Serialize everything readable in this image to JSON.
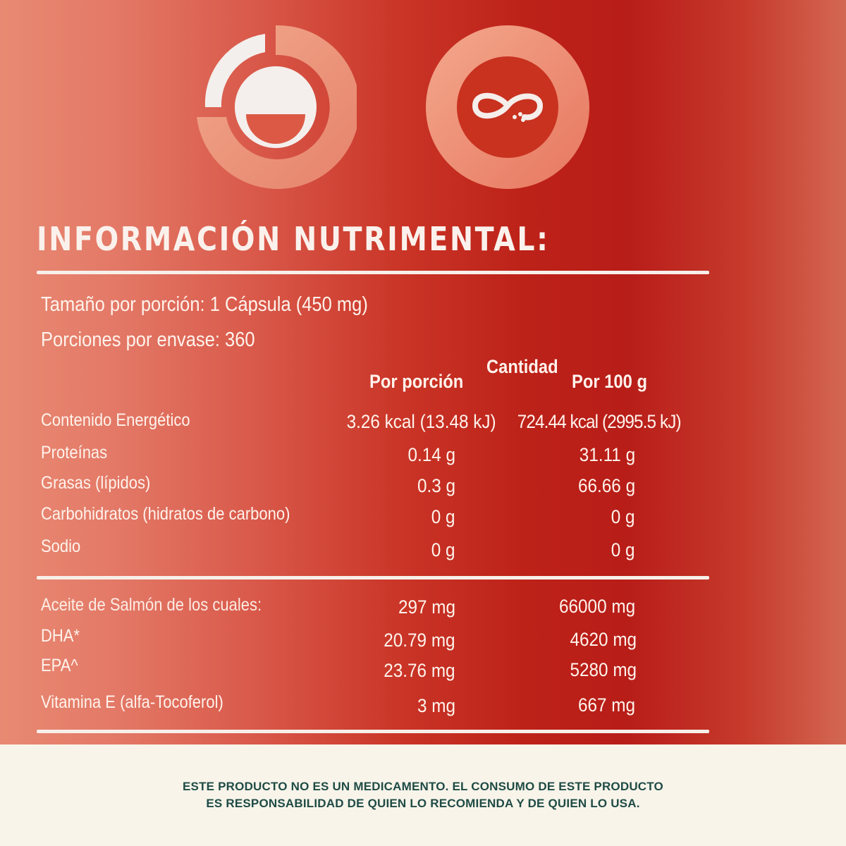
{
  "title": "INFORMACIÓN NUTRIMENTAL:",
  "serving_size": "Tamaño por porción: 1 Cápsula (450 mg)",
  "servings_per_container": "Porciones por envase:  360",
  "columns": {
    "quantity": "Cantidad",
    "per_serving": "Por porción",
    "per_100g": "Por 100 g"
  },
  "nutrients": [
    {
      "name": "Contenido Energético",
      "per_serving": "3.26 kcal (13.48 kJ)",
      "per_100g": "724.44 kcal (2995.5 kJ)"
    },
    {
      "name": "Proteínas",
      "per_serving": "0.14 g",
      "per_100g": "31.11 g"
    },
    {
      "name": "Grasas (lípidos)",
      "per_serving": "0.3 g",
      "per_100g": "66.66 g"
    },
    {
      "name": "Carbohidratos (hidratos de carbono)",
      "per_serving": "0 g",
      "per_100g": "0 g"
    },
    {
      "name": "Sodio",
      "per_serving": "0 g",
      "per_100g": "0 g"
    }
  ],
  "components": [
    {
      "name": "Aceite de Salmón de los cuales:",
      "per_serving": "297 mg",
      "per_100g": "66000 mg"
    },
    {
      "name": "DHA*",
      "per_serving": "20.79 mg",
      "per_100g": "4620 mg"
    },
    {
      "name": "EPA^",
      "per_serving": "23.76 mg",
      "per_100g": "5280 mg"
    },
    {
      "name": "Vitamina E (alfa-Tocoferol)",
      "per_serving": "3 mg",
      "per_100g": "667 mg"
    }
  ],
  "disclaimer": {
    "line1": "ESTE PRODUCTO NO ES UN MEDICAMENTO. EL CONSUMO DE ESTE PRODUCTO",
    "line2": "ES RESPONSABILIDAD DE QUIEN LO RECOMIENDA Y DE QUIEN LO USA."
  },
  "icons": {
    "left": "capsule-dose-icon",
    "right": "infinity-icon"
  },
  "colors": {
    "label_red": "#bd2219",
    "footer_bg": "#f8f4ea",
    "footer_text": "#1f4b45"
  }
}
